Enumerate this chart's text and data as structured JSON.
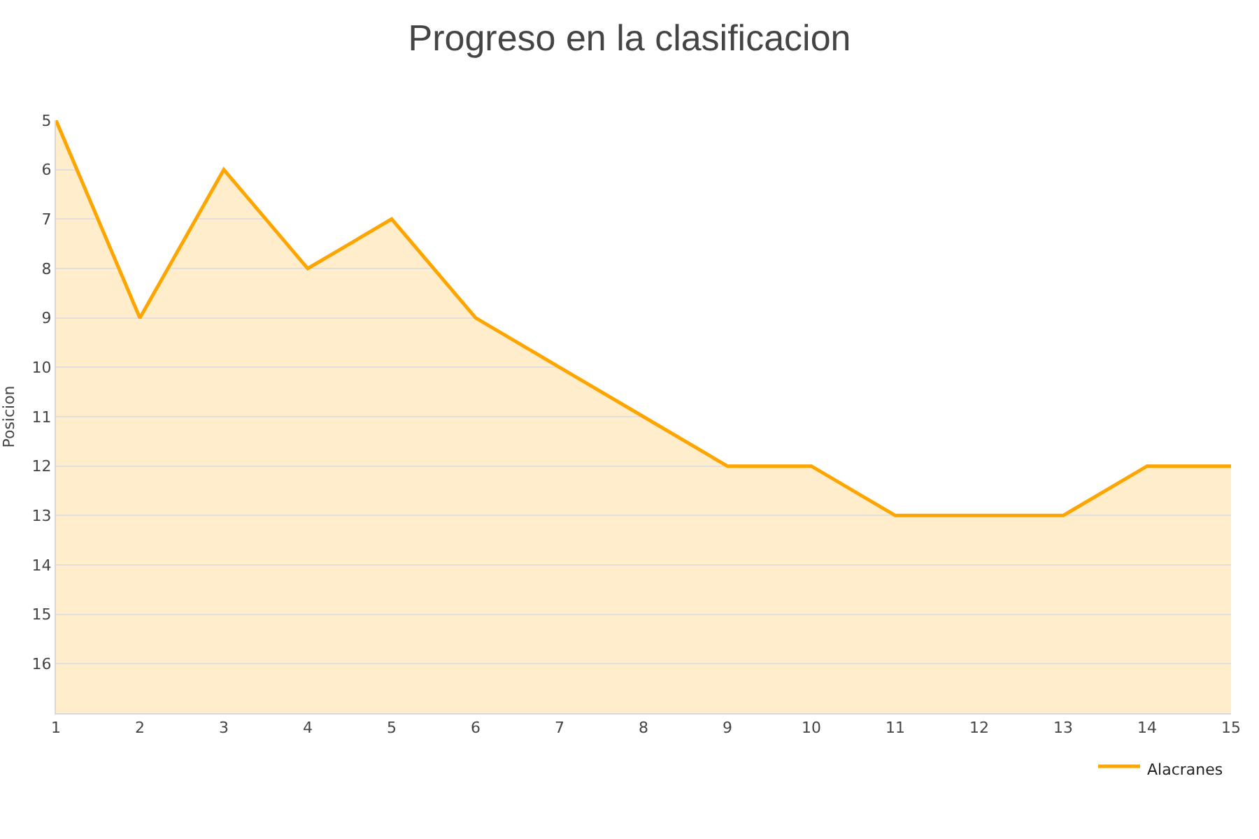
{
  "chart_data": {
    "type": "area",
    "title": "Progreso en la clasificacion",
    "ylabel": "Posicion",
    "x": [
      1,
      2,
      3,
      4,
      5,
      6,
      7,
      8,
      9,
      10,
      11,
      12,
      13,
      14,
      15
    ],
    "series": [
      {
        "name": "Alacranes",
        "color": "#ffa500",
        "values": [
          5,
          9,
          6,
          8,
          7,
          9,
          10,
          11,
          12,
          12,
          13,
          13,
          13,
          12,
          12
        ]
      }
    ],
    "xlim": [
      1,
      15
    ],
    "xticks": [
      1,
      2,
      3,
      4,
      5,
      6,
      7,
      8,
      9,
      10,
      11,
      12,
      13,
      14,
      15
    ],
    "ylim": [
      17,
      5
    ],
    "yticks": [
      5,
      6,
      7,
      8,
      9,
      10,
      11,
      12,
      13,
      14,
      15,
      16
    ],
    "grid": "y",
    "legend": "bottom right",
    "marker": "none"
  }
}
